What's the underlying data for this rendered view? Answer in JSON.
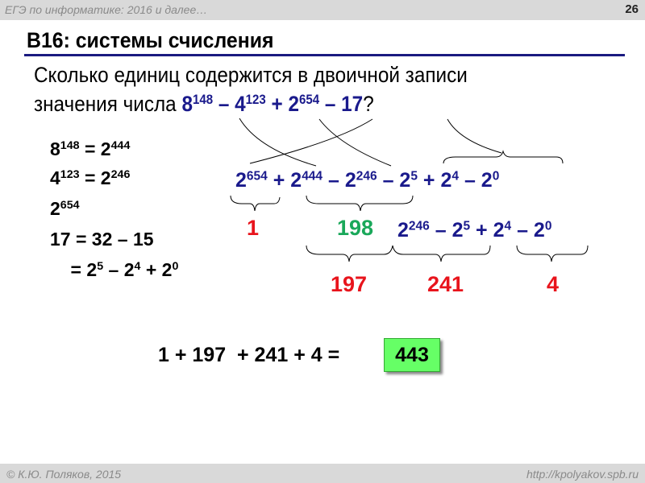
{
  "header": {
    "title": "ЕГЭ по информатике: 2016 и далее…",
    "slide_number": "26"
  },
  "slide": {
    "title": "B16: системы счисления",
    "question_line1": "Сколько единиц содержится в двоичной записи",
    "question_line2_prefix": "значения числа ",
    "question_expr": [
      {
        "t": "8",
        "s": "148"
      },
      {
        "t": " – 4",
        "s": "123"
      },
      {
        "t": " + 2",
        "s": "654"
      },
      {
        "t": " – 17"
      }
    ],
    "question_suffix": "?",
    "left_lines": [
      [
        {
          "t": "8",
          "s": "148"
        },
        {
          "t": " = 2",
          "s": "444"
        }
      ],
      [
        {
          "t": "4",
          "s": "123"
        },
        {
          "t": " = 2",
          "s": "246"
        }
      ],
      [
        {
          "t": "2",
          "s": "654"
        }
      ],
      [
        {
          "t": "17 = 32 – 15"
        }
      ],
      [
        {
          "t": "    = 2",
          "s": "5"
        },
        {
          "t": " – 2",
          "s": "4"
        },
        {
          "t": " + 2",
          "s": "0"
        }
      ]
    ],
    "expr_main": [
      {
        "t": "2",
        "s": "654"
      },
      {
        "t": " + 2",
        "s": "444"
      },
      {
        "t": " – 2",
        "s": "246"
      },
      {
        "t": " – 2",
        "s": "5"
      },
      {
        "t": " + 2",
        "s": "4"
      },
      {
        "t": " – 2",
        "s": "0"
      }
    ],
    "expr_second": [
      {
        "t": "2",
        "s": "246"
      },
      {
        "t": " – 2",
        "s": "5"
      },
      {
        "t": " + 2",
        "s": "4"
      },
      {
        "t": " – 2",
        "s": "0"
      }
    ],
    "count_1": "1",
    "count_198": "198",
    "count_197": "197",
    "count_241": "241",
    "count_4": "4",
    "sum": "1 + 197  + 241 + 4 =",
    "answer": "443"
  },
  "footer": {
    "author": "© К.Ю. Поляков, 2015",
    "url": "http://kpolyakov.spb.ru"
  },
  "colors": {
    "accent_blue": "#1a1a8c",
    "red": "#e8141c",
    "green": "#1aa85a",
    "answer_bg": "#66ff66"
  }
}
